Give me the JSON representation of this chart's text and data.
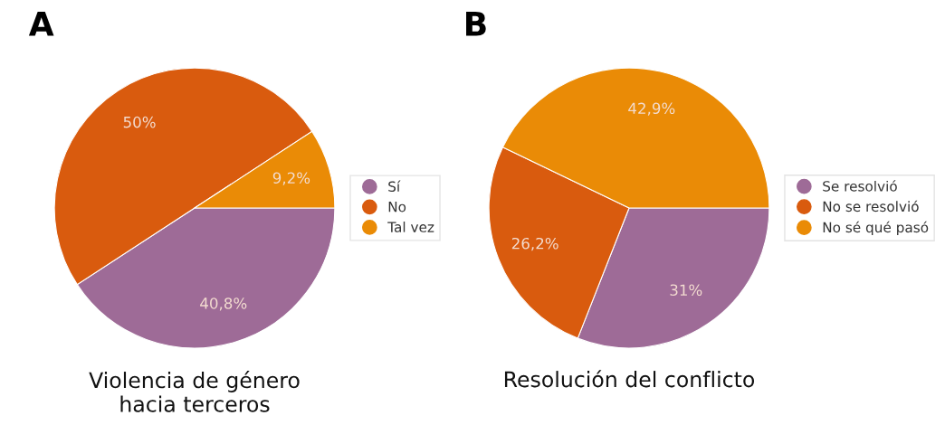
{
  "chart_data": [
    {
      "type": "pie",
      "title": "Violencia de género\nhacia terceros",
      "categories": [
        "Sí",
        "No",
        "Tal vez"
      ],
      "values": [
        40.8,
        50,
        9.2
      ],
      "value_labels": [
        "40,8%",
        "50%",
        "9,2%"
      ],
      "colors": [
        "#9e6b97",
        "#d95b0e",
        "#ea8b06"
      ],
      "legend": "right",
      "annotations": [
        "A"
      ]
    },
    {
      "type": "pie",
      "title": "Resolución del conflicto",
      "categories": [
        "Se resolvió",
        "No se resolvió",
        "No sé qué pasó"
      ],
      "values": [
        31,
        26.2,
        42.9
      ],
      "value_labels": [
        "31%",
        "26,2%",
        "42,9%"
      ],
      "colors": [
        "#9e6b97",
        "#d95b0e",
        "#ea8b06"
      ],
      "legend": "right",
      "annotations": [
        "B"
      ]
    }
  ]
}
